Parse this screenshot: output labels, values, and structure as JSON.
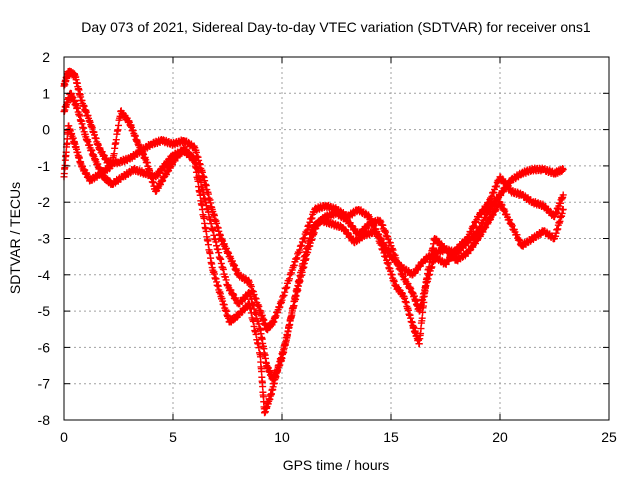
{
  "chart_data": {
    "type": "scatter",
    "title": "Day 073 of 2021, Sidereal Day-to-day VTEC variation (SDTVAR) for receiver ons1",
    "xlabel": "GPS time / hours",
    "ylabel": "SDTVAR / TECUs",
    "xlim": [
      0,
      25
    ],
    "ylim": [
      -8,
      2
    ],
    "xticks": [
      "0",
      "5",
      "10",
      "15",
      "20",
      "25"
    ],
    "yticks": [
      "2",
      "1",
      "0",
      "-1",
      "-2",
      "-3",
      "-4",
      "-5",
      "-6",
      "-7",
      "-8"
    ],
    "grid": true,
    "marker": "+",
    "color": "#ff0000",
    "series": [
      {
        "points": [
          [
            0.0,
            1.2
          ],
          [
            0.2,
            1.6
          ],
          [
            0.5,
            1.5
          ],
          [
            0.8,
            0.8
          ],
          [
            1.2,
            0.2
          ],
          [
            1.6,
            -0.5
          ],
          [
            2.0,
            -0.9
          ],
          [
            2.5,
            -0.9
          ],
          [
            3.0,
            -0.8
          ],
          [
            3.5,
            -0.6
          ],
          [
            4.0,
            -0.4
          ],
          [
            4.5,
            -0.3
          ],
          [
            5.0,
            -0.4
          ],
          [
            5.5,
            -0.3
          ],
          [
            6.0,
            -0.5
          ],
          [
            6.4,
            -1.3
          ],
          [
            6.8,
            -2.2
          ],
          [
            7.2,
            -3.0
          ],
          [
            7.6,
            -3.5
          ],
          [
            8.0,
            -4.0
          ],
          [
            8.5,
            -4.2
          ],
          [
            9.0,
            -5.0
          ],
          [
            9.3,
            -5.5
          ],
          [
            9.6,
            -5.3
          ],
          [
            10.0,
            -4.7
          ],
          [
            10.5,
            -3.8
          ],
          [
            11.0,
            -3.0
          ],
          [
            11.5,
            -2.2
          ],
          [
            12.0,
            -2.1
          ],
          [
            12.5,
            -2.2
          ],
          [
            13.0,
            -2.4
          ],
          [
            13.5,
            -2.2
          ],
          [
            14.0,
            -2.4
          ],
          [
            14.5,
            -3.0
          ],
          [
            15.0,
            -3.5
          ],
          [
            15.5,
            -3.8
          ],
          [
            16.0,
            -4.0
          ],
          [
            16.5,
            -3.6
          ],
          [
            17.0,
            -3.4
          ],
          [
            17.5,
            -3.3
          ],
          [
            18.0,
            -3.4
          ],
          [
            18.5,
            -3.1
          ],
          [
            19.0,
            -2.8
          ],
          [
            19.5,
            -2.2
          ],
          [
            20.0,
            -1.8
          ],
          [
            20.5,
            -1.4
          ],
          [
            21.0,
            -1.2
          ],
          [
            21.5,
            -1.1
          ],
          [
            22.0,
            -1.1
          ],
          [
            22.5,
            -1.2
          ],
          [
            22.9,
            -1.1
          ]
        ]
      },
      {
        "points": [
          [
            0.0,
            0.5
          ],
          [
            0.3,
            1.0
          ],
          [
            0.6,
            0.6
          ],
          [
            1.0,
            -0.2
          ],
          [
            1.4,
            -0.8
          ],
          [
            1.8,
            -1.3
          ],
          [
            2.2,
            -1.5
          ],
          [
            2.7,
            -1.3
          ],
          [
            3.2,
            -1.1
          ],
          [
            3.7,
            -1.2
          ],
          [
            4.2,
            -1.3
          ],
          [
            4.6,
            -1.0
          ],
          [
            5.0,
            -0.7
          ],
          [
            5.5,
            -0.6
          ],
          [
            6.0,
            -0.8
          ],
          [
            6.5,
            -2.0
          ],
          [
            7.0,
            -3.2
          ],
          [
            7.5,
            -4.3
          ],
          [
            8.0,
            -4.8
          ],
          [
            8.5,
            -4.5
          ],
          [
            9.0,
            -5.5
          ],
          [
            9.3,
            -6.5
          ],
          [
            9.6,
            -6.9
          ],
          [
            10.0,
            -6.3
          ],
          [
            10.4,
            -5.2
          ],
          [
            10.8,
            -4.2
          ],
          [
            11.2,
            -3.3
          ],
          [
            11.6,
            -2.6
          ],
          [
            12.0,
            -2.4
          ],
          [
            12.5,
            -2.3
          ],
          [
            13.0,
            -2.5
          ],
          [
            13.5,
            -2.9
          ],
          [
            14.0,
            -2.6
          ],
          [
            14.5,
            -2.5
          ],
          [
            15.0,
            -3.2
          ],
          [
            15.5,
            -4.0
          ],
          [
            16.0,
            -4.5
          ],
          [
            16.3,
            -5.0
          ],
          [
            16.6,
            -4.3
          ],
          [
            17.0,
            -3.5
          ],
          [
            17.5,
            -3.7
          ],
          [
            18.0,
            -3.3
          ],
          [
            18.5,
            -3.0
          ],
          [
            19.0,
            -2.4
          ],
          [
            19.5,
            -2.0
          ],
          [
            20.0,
            -1.3
          ],
          [
            20.5,
            -1.7
          ],
          [
            21.0,
            -1.8
          ],
          [
            21.5,
            -2.0
          ],
          [
            22.0,
            -2.1
          ],
          [
            22.5,
            -2.4
          ],
          [
            22.9,
            -1.8
          ]
        ]
      },
      {
        "points": [
          [
            0.0,
            -1.3
          ],
          [
            0.2,
            0.1
          ],
          [
            0.5,
            -0.4
          ],
          [
            0.8,
            -1.0
          ],
          [
            1.2,
            -1.4
          ],
          [
            1.7,
            -1.2
          ],
          [
            2.2,
            -1.0
          ],
          [
            2.6,
            0.5
          ],
          [
            3.0,
            0.2
          ],
          [
            3.4,
            -0.4
          ],
          [
            3.8,
            -0.9
          ],
          [
            4.2,
            -1.7
          ],
          [
            4.6,
            -1.3
          ],
          [
            5.0,
            -0.9
          ],
          [
            5.5,
            -0.5
          ],
          [
            6.0,
            -0.9
          ],
          [
            6.4,
            -2.4
          ],
          [
            6.8,
            -3.8
          ],
          [
            7.2,
            -4.6
          ],
          [
            7.6,
            -5.3
          ],
          [
            8.0,
            -5.1
          ],
          [
            8.5,
            -4.8
          ],
          [
            9.0,
            -6.2
          ],
          [
            9.2,
            -7.8
          ],
          [
            9.5,
            -7.3
          ],
          [
            9.8,
            -6.6
          ],
          [
            10.2,
            -5.8
          ],
          [
            10.6,
            -4.6
          ],
          [
            11.0,
            -3.6
          ],
          [
            11.4,
            -2.7
          ],
          [
            11.8,
            -2.5
          ],
          [
            12.3,
            -2.6
          ],
          [
            12.8,
            -2.7
          ],
          [
            13.3,
            -3.1
          ],
          [
            13.8,
            -2.9
          ],
          [
            14.3,
            -2.8
          ],
          [
            14.8,
            -3.6
          ],
          [
            15.2,
            -4.3
          ],
          [
            15.6,
            -4.6
          ],
          [
            16.0,
            -5.4
          ],
          [
            16.3,
            -5.9
          ],
          [
            16.6,
            -4.2
          ],
          [
            17.0,
            -3.0
          ],
          [
            17.5,
            -3.3
          ],
          [
            18.0,
            -3.6
          ],
          [
            18.5,
            -3.4
          ],
          [
            19.0,
            -3.0
          ],
          [
            19.5,
            -2.5
          ],
          [
            20.0,
            -2.0
          ],
          [
            20.5,
            -2.6
          ],
          [
            21.0,
            -3.2
          ],
          [
            21.5,
            -3.0
          ],
          [
            22.0,
            -2.8
          ],
          [
            22.5,
            -3.0
          ],
          [
            22.9,
            -2.2
          ]
        ]
      }
    ]
  }
}
